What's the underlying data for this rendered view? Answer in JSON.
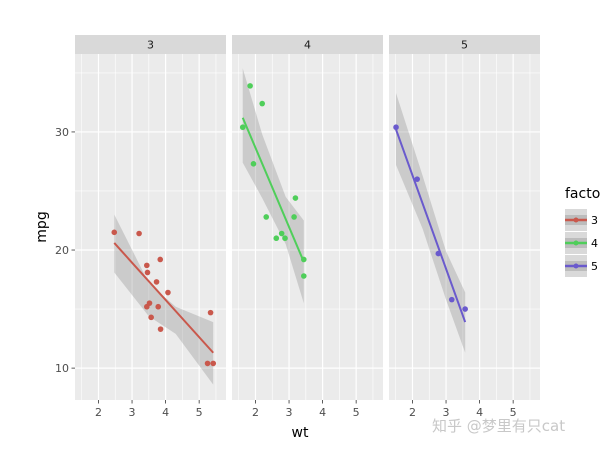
{
  "chart_data": {
    "type": "scatter",
    "facet_by": "gear",
    "facets": [
      "3",
      "4",
      "5"
    ],
    "xlabel": "wt",
    "ylabel": "mpg",
    "xlim": [
      1.3,
      5.8
    ],
    "ylim": [
      7.3,
      36.6
    ],
    "xticks": [
      2,
      3,
      4,
      5
    ],
    "yticks": [
      10,
      20,
      30
    ],
    "grid": true,
    "smooth": "lm with confidence band",
    "legend": {
      "title": "factor(gear)",
      "position": "right",
      "entries": [
        "3",
        "4",
        "5"
      ]
    },
    "colors": {
      "3": "#c9584c",
      "4": "#4fce5a",
      "5": "#6a5acd",
      "band": "#999999",
      "panel_bg": "#ebebeb",
      "strip_bg": "#d9d9d9",
      "grid": "#ffffff"
    },
    "series": [
      {
        "name": "3",
        "points": [
          [
            2.47,
            21.5
          ],
          [
            3.21,
            21.4
          ],
          [
            3.44,
            18.7
          ],
          [
            3.46,
            18.1
          ],
          [
            3.44,
            15.2
          ],
          [
            3.52,
            15.5
          ],
          [
            3.57,
            14.3
          ],
          [
            3.73,
            17.3
          ],
          [
            3.78,
            15.2
          ],
          [
            3.84,
            19.2
          ],
          [
            3.85,
            13.3
          ],
          [
            4.07,
            16.4
          ],
          [
            5.25,
            10.4
          ],
          [
            5.34,
            14.7
          ],
          [
            5.42,
            10.4
          ]
        ],
        "fit": [
          [
            2.47,
            20.6
          ],
          [
            5.42,
            11.3
          ]
        ],
        "band": [
          [
            2.47,
            23.0
          ],
          [
            3.5,
            17.2
          ],
          [
            4.3,
            15.2
          ],
          [
            5.42,
            13.9
          ],
          [
            5.42,
            8.6
          ],
          [
            4.3,
            12.9
          ],
          [
            3.5,
            14.4
          ],
          [
            2.47,
            18.1
          ]
        ]
      },
      {
        "name": "4",
        "points": [
          [
            1.62,
            30.4
          ],
          [
            1.84,
            33.9
          ],
          [
            1.94,
            27.3
          ],
          [
            2.2,
            32.4
          ],
          [
            2.32,
            22.8
          ],
          [
            2.62,
            21.0
          ],
          [
            2.78,
            21.4
          ],
          [
            2.88,
            21.0
          ],
          [
            3.15,
            22.8
          ],
          [
            3.19,
            24.4
          ],
          [
            3.44,
            19.2
          ],
          [
            3.44,
            17.8
          ]
        ],
        "fit": [
          [
            1.62,
            31.2
          ],
          [
            3.44,
            19.0
          ]
        ],
        "band": [
          [
            1.62,
            35.4
          ],
          [
            2.2,
            29.8
          ],
          [
            2.9,
            24.5
          ],
          [
            3.44,
            22.5
          ],
          [
            3.44,
            15.5
          ],
          [
            2.9,
            20.5
          ],
          [
            2.2,
            24.4
          ],
          [
            1.62,
            27.4
          ]
        ]
      },
      {
        "name": "5",
        "points": [
          [
            1.51,
            30.4
          ],
          [
            2.14,
            26.0
          ],
          [
            2.77,
            19.7
          ],
          [
            3.17,
            15.8
          ],
          [
            3.57,
            15.0
          ]
        ],
        "fit": [
          [
            1.51,
            30.2
          ],
          [
            3.57,
            13.9
          ]
        ],
        "band": [
          [
            1.51,
            33.3
          ],
          [
            2.3,
            26.3
          ],
          [
            3.0,
            19.9
          ],
          [
            3.57,
            16.4
          ],
          [
            3.57,
            11.3
          ],
          [
            3.0,
            15.8
          ],
          [
            2.3,
            21.8
          ],
          [
            1.51,
            27.2
          ]
        ]
      }
    ]
  },
  "watermark": "知乎 @梦里有只cat"
}
